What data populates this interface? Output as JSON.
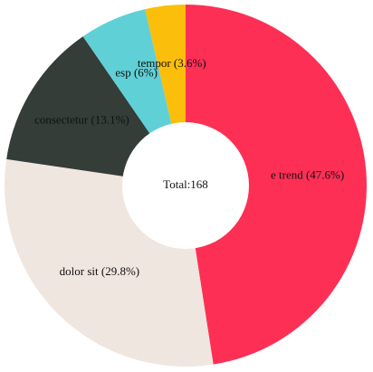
{
  "chart_data": {
    "type": "donut",
    "center_label": "Total:168",
    "values": [
      47.6,
      29.8,
      13.1,
      6,
      3.6
    ],
    "value_labels": [
      "e trend (47.6%)",
      "dolor sit (29.8%)",
      "consectetur (13.1%)",
      "esp (6%)",
      "tempor (3.6%)"
    ],
    "colors": [
      "#fe2f55",
      "#efe6df",
      "#343d38",
      "#5fd0d6",
      "#fbbe0a"
    ]
  }
}
